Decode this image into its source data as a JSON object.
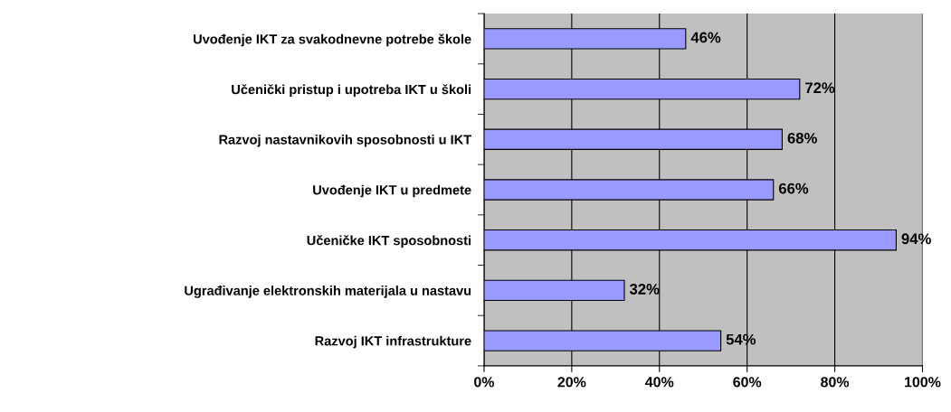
{
  "chart_data": {
    "type": "bar",
    "orientation": "horizontal",
    "categories": [
      "Uvođenje IKT za svakodnevne potrebe škole",
      "Učenički pristup i upotreba IKT u školi",
      "Razvoj nastavnikovih sposobnosti u IKT",
      "Uvođenje IKT u predmete",
      "Učeničke IKT sposobnosti",
      "Ugrađivanje elektronskih materijala u nastavu",
      "Razvoj IKT infrastrukture"
    ],
    "values": [
      46,
      72,
      68,
      66,
      94,
      32,
      54
    ],
    "value_labels": [
      "46%",
      "72%",
      "68%",
      "66%",
      "94%",
      "32%",
      "54%"
    ],
    "color": "#9999ff",
    "xlim": [
      0,
      100
    ],
    "xticks": [
      {
        "value": 0,
        "label": "0%"
      },
      {
        "value": 20,
        "label": "20%"
      },
      {
        "value": 40,
        "label": "40%"
      },
      {
        "value": 60,
        "label": "60%"
      },
      {
        "value": 80,
        "label": "80%"
      },
      {
        "value": 100,
        "label": "100%"
      }
    ],
    "grid": "x",
    "legend": false
  }
}
